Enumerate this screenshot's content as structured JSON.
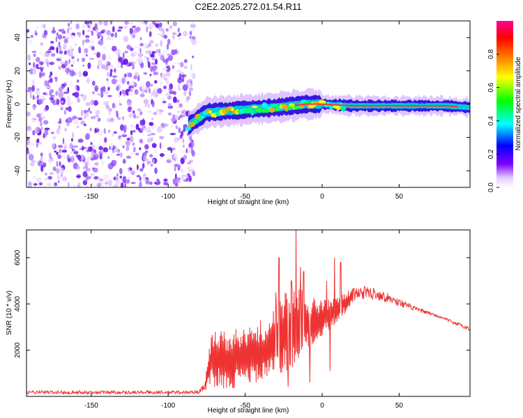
{
  "title": "C2E2.2025.272.01.54.R11",
  "colors": {
    "noise": "#9966ee",
    "signal_core": "#ff3333",
    "snr_line": "#ee3333"
  },
  "chart_data": [
    {
      "type": "heatmap",
      "xlabel": "Height of straight line (km)",
      "ylabel": "Frequency (Hz)",
      "xlim": [
        -192,
        96
      ],
      "ylim": [
        -50,
        50
      ],
      "xticks": [
        -150,
        -100,
        -50,
        0,
        50
      ],
      "xtick_labels": [
        "-150",
        "-100",
        "-50",
        "0",
        "50"
      ],
      "yticks": [
        -40,
        -20,
        0,
        20,
        40
      ],
      "ytick_labels": [
        "-40",
        "-20",
        "0",
        "20",
        "40"
      ],
      "noise_region_km": [
        -192,
        -87
      ],
      "signal_ridge": {
        "x": [
          -87,
          -75,
          -60,
          -45,
          -30,
          -20,
          -10,
          0,
          20,
          50,
          80,
          96
        ],
        "frequency": [
          -13,
          -5,
          -4,
          -3,
          -2,
          -1,
          0,
          0,
          -1,
          -1,
          -1,
          -2
        ]
      },
      "colorbar": {
        "label": "Normalized spectral amplitude",
        "range": [
          0,
          1
        ],
        "ticks": [
          0.0,
          0.2,
          0.4,
          0.6,
          0.8
        ],
        "tick_labels": [
          "0.0",
          "0.2",
          "0.4",
          "0.6",
          "0.8"
        ],
        "colors": [
          "#ffffff",
          "#8000ff",
          "#0000ff",
          "#00ffff",
          "#00ff00",
          "#ffff00",
          "#ff8000",
          "#ff0000",
          "#ff00a0"
        ]
      }
    },
    {
      "type": "line",
      "xlabel": "Height of straight line (km)",
      "ylabel": "SNR (10 * v/v)",
      "xlim": [
        -192,
        96
      ],
      "ylim": [
        0,
        7200
      ],
      "xticks": [
        -150,
        -100,
        -50,
        0,
        50
      ],
      "xtick_labels": [
        "-150",
        "-100",
        "-50",
        "0",
        "50"
      ],
      "yticks": [
        2000,
        4000,
        6000
      ],
      "ytick_labels": [
        "2000",
        "4000",
        "6000"
      ],
      "envelope": {
        "x": [
          -192,
          -80,
          -76,
          -72,
          -60,
          -45,
          -35,
          -28,
          -20,
          -15,
          -10,
          -5,
          0,
          5,
          10,
          15,
          20,
          25,
          35,
          45,
          60,
          80,
          96
        ],
        "low": [
          100,
          100,
          250,
          400,
          300,
          500,
          700,
          800,
          1200,
          1500,
          1800,
          2200,
          2600,
          2900,
          3200,
          3600,
          4000,
          4200,
          4200,
          4000,
          3700,
          3300,
          2800
        ],
        "high": [
          250,
          250,
          700,
          2800,
          2900,
          3000,
          3300,
          4200,
          4800,
          4700,
          4500,
          4300,
          4200,
          4200,
          4300,
          4500,
          4700,
          4800,
          4700,
          4400,
          3900,
          3400,
          3000
        ]
      },
      "spikes": [
        {
          "x": -40,
          "snr": 3300
        },
        {
          "x": -30,
          "snr": 4500
        },
        {
          "x": -28,
          "snr": 6000
        },
        {
          "x": -20,
          "snr": 5000
        },
        {
          "x": -17,
          "snr": 7200
        },
        {
          "x": -14,
          "snr": 5600
        },
        {
          "x": -12,
          "snr": 5400
        },
        {
          "x": 3,
          "snr": 5000
        },
        {
          "x": 5,
          "snr": 5200
        },
        {
          "x": 8,
          "snr": 6000
        },
        {
          "x": 12,
          "snr": 5800
        }
      ],
      "dips": [
        {
          "x": -22,
          "snr": 400
        },
        {
          "x": -8,
          "snr": 600
        },
        {
          "x": 5,
          "snr": 1100
        }
      ]
    }
  ]
}
